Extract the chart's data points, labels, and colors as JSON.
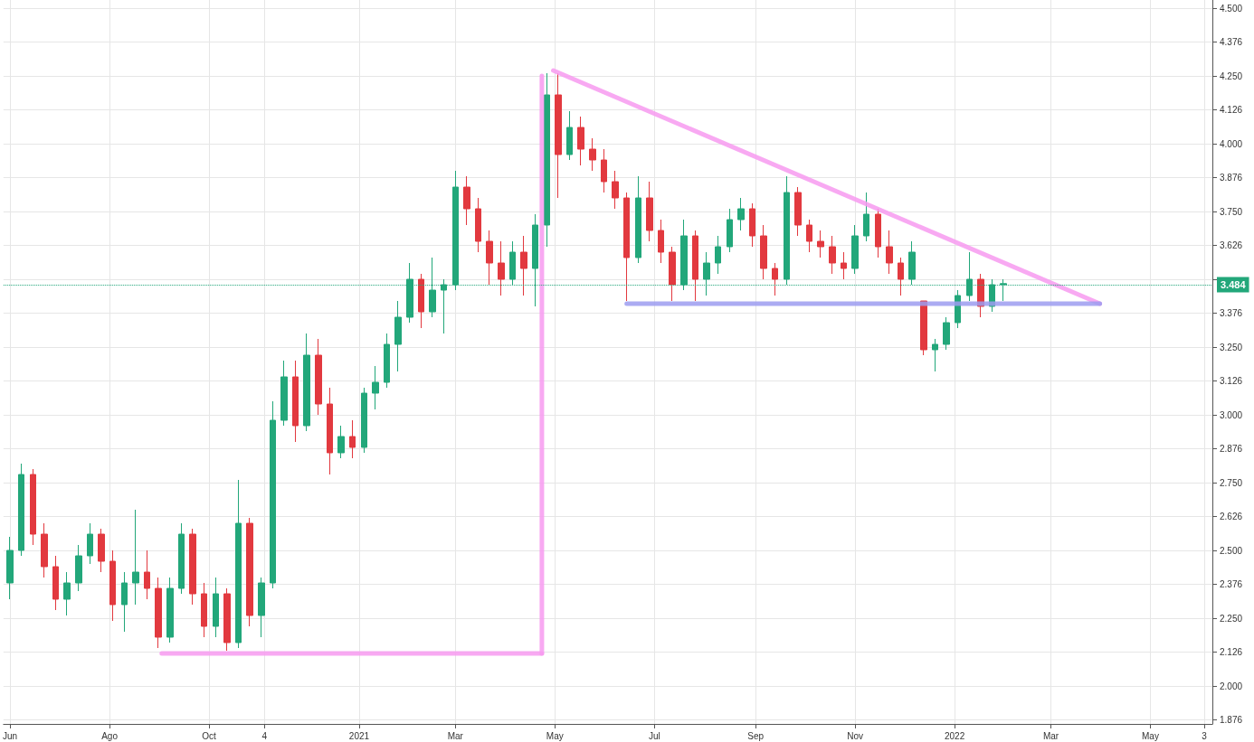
{
  "chart_data": {
    "type": "candlestick",
    "x": [
      "2020-06-01",
      "2020-06-08",
      "2020-06-15",
      "2020-06-22",
      "2020-06-29",
      "2020-07-06",
      "2020-07-13",
      "2020-07-20",
      "2020-07-27",
      "2020-08-03",
      "2020-08-10",
      "2020-08-17",
      "2020-08-24",
      "2020-08-31",
      "2020-09-07",
      "2020-09-14",
      "2020-09-21",
      "2020-09-28",
      "2020-10-05",
      "2020-10-12",
      "2020-10-19",
      "2020-10-26",
      "2020-11-02",
      "2020-11-09",
      "2020-11-16",
      "2020-11-23",
      "2020-11-30",
      "2020-12-07",
      "2020-12-14",
      "2020-12-21",
      "2020-12-28",
      "2021-01-04",
      "2021-01-11",
      "2021-01-18",
      "2021-01-25",
      "2021-02-01",
      "2021-02-08",
      "2021-02-15",
      "2021-02-22",
      "2021-03-01",
      "2021-03-08",
      "2021-03-15",
      "2021-03-22",
      "2021-03-29",
      "2021-04-05",
      "2021-04-12",
      "2021-04-19",
      "2021-04-26",
      "2021-05-03",
      "2021-05-10",
      "2021-05-17",
      "2021-05-24",
      "2021-05-31",
      "2021-06-07",
      "2021-06-14",
      "2021-06-21",
      "2021-06-28",
      "2021-07-05",
      "2021-07-12",
      "2021-07-19",
      "2021-07-26",
      "2021-08-02",
      "2021-08-09",
      "2021-08-16",
      "2021-08-23",
      "2021-08-30",
      "2021-09-06",
      "2021-09-13",
      "2021-09-20",
      "2021-09-27",
      "2021-10-04",
      "2021-10-11",
      "2021-10-18",
      "2021-10-25",
      "2021-11-01",
      "2021-11-08",
      "2021-11-15",
      "2021-11-22",
      "2021-11-29",
      "2021-12-06",
      "2021-12-13",
      "2021-12-20",
      "2021-12-27",
      "2022-01-03",
      "2022-01-10",
      "2022-01-17",
      "2022-01-24",
      "2022-01-31"
    ],
    "ohlc": [
      [
        2.38,
        2.55,
        2.32,
        2.5
      ],
      [
        2.5,
        2.82,
        2.48,
        2.78
      ],
      [
        2.78,
        2.8,
        2.52,
        2.56
      ],
      [
        2.56,
        2.6,
        2.4,
        2.44
      ],
      [
        2.44,
        2.48,
        2.28,
        2.32
      ],
      [
        2.32,
        2.42,
        2.26,
        2.38
      ],
      [
        2.38,
        2.52,
        2.35,
        2.48
      ],
      [
        2.48,
        2.6,
        2.45,
        2.56
      ],
      [
        2.56,
        2.58,
        2.42,
        2.46
      ],
      [
        2.46,
        2.5,
        2.24,
        2.3
      ],
      [
        2.3,
        2.42,
        2.2,
        2.38
      ],
      [
        2.38,
        2.65,
        2.3,
        2.42
      ],
      [
        2.42,
        2.5,
        2.32,
        2.36
      ],
      [
        2.36,
        2.4,
        2.14,
        2.18
      ],
      [
        2.18,
        2.4,
        2.16,
        2.36
      ],
      [
        2.36,
        2.6,
        2.34,
        2.56
      ],
      [
        2.56,
        2.58,
        2.3,
        2.34
      ],
      [
        2.34,
        2.38,
        2.18,
        2.22
      ],
      [
        2.22,
        2.4,
        2.18,
        2.34
      ],
      [
        2.34,
        2.36,
        2.13,
        2.16
      ],
      [
        2.16,
        2.76,
        2.14,
        2.6
      ],
      [
        2.6,
        2.62,
        2.22,
        2.26
      ],
      [
        2.26,
        2.4,
        2.18,
        2.38
      ],
      [
        2.38,
        3.05,
        2.36,
        2.98
      ],
      [
        2.98,
        3.2,
        2.96,
        3.14
      ],
      [
        3.14,
        3.2,
        2.9,
        2.96
      ],
      [
        2.96,
        3.3,
        2.94,
        3.22
      ],
      [
        3.22,
        3.28,
        3.0,
        3.04
      ],
      [
        3.04,
        3.1,
        2.78,
        2.86
      ],
      [
        2.86,
        2.96,
        2.84,
        2.92
      ],
      [
        2.92,
        2.98,
        2.84,
        2.88
      ],
      [
        2.88,
        3.1,
        2.86,
        3.08
      ],
      [
        3.08,
        3.18,
        3.02,
        3.12
      ],
      [
        3.12,
        3.3,
        3.1,
        3.26
      ],
      [
        3.26,
        3.42,
        3.16,
        3.36
      ],
      [
        3.36,
        3.56,
        3.34,
        3.5
      ],
      [
        3.5,
        3.52,
        3.32,
        3.38
      ],
      [
        3.38,
        3.58,
        3.36,
        3.46
      ],
      [
        3.46,
        3.5,
        3.3,
        3.48
      ],
      [
        3.48,
        3.9,
        3.46,
        3.84
      ],
      [
        3.84,
        3.88,
        3.7,
        3.76
      ],
      [
        3.76,
        3.8,
        3.6,
        3.64
      ],
      [
        3.64,
        3.68,
        3.48,
        3.56
      ],
      [
        3.56,
        3.64,
        3.44,
        3.5
      ],
      [
        3.5,
        3.64,
        3.48,
        3.6
      ],
      [
        3.6,
        3.66,
        3.44,
        3.54
      ],
      [
        3.54,
        3.74,
        3.4,
        3.7
      ],
      [
        3.7,
        4.26,
        3.62,
        4.18
      ],
      [
        4.18,
        4.26,
        3.8,
        3.96
      ],
      [
        3.96,
        4.12,
        3.94,
        4.06
      ],
      [
        4.06,
        4.1,
        3.92,
        3.98
      ],
      [
        3.98,
        4.02,
        3.9,
        3.94
      ],
      [
        3.94,
        3.98,
        3.82,
        3.86
      ],
      [
        3.86,
        3.9,
        3.76,
        3.8
      ],
      [
        3.8,
        3.82,
        3.42,
        3.58
      ],
      [
        3.58,
        3.88,
        3.56,
        3.8
      ],
      [
        3.8,
        3.86,
        3.64,
        3.68
      ],
      [
        3.68,
        3.72,
        3.56,
        3.6
      ],
      [
        3.6,
        3.62,
        3.42,
        3.48
      ],
      [
        3.48,
        3.72,
        3.46,
        3.66
      ],
      [
        3.66,
        3.68,
        3.42,
        3.5
      ],
      [
        3.5,
        3.6,
        3.44,
        3.56
      ],
      [
        3.56,
        3.66,
        3.52,
        3.62
      ],
      [
        3.62,
        3.76,
        3.6,
        3.72
      ],
      [
        3.72,
        3.8,
        3.68,
        3.76
      ],
      [
        3.76,
        3.78,
        3.62,
        3.66
      ],
      [
        3.66,
        3.7,
        3.5,
        3.54
      ],
      [
        3.54,
        3.56,
        3.44,
        3.5
      ],
      [
        3.5,
        3.88,
        3.48,
        3.82
      ],
      [
        3.82,
        3.84,
        3.66,
        3.7
      ],
      [
        3.7,
        3.72,
        3.6,
        3.64
      ],
      [
        3.64,
        3.68,
        3.58,
        3.62
      ],
      [
        3.62,
        3.66,
        3.52,
        3.56
      ],
      [
        3.56,
        3.6,
        3.5,
        3.54
      ],
      [
        3.54,
        3.7,
        3.52,
        3.66
      ],
      [
        3.66,
        3.82,
        3.64,
        3.74
      ],
      [
        3.74,
        3.76,
        3.58,
        3.62
      ],
      [
        3.62,
        3.68,
        3.52,
        3.56
      ],
      [
        3.56,
        3.58,
        3.44,
        3.5
      ],
      [
        3.5,
        3.64,
        3.48,
        3.6
      ],
      [
        3.42,
        3.42,
        3.22,
        3.24
      ],
      [
        3.24,
        3.28,
        3.16,
        3.26
      ],
      [
        3.26,
        3.36,
        3.24,
        3.34
      ],
      [
        3.34,
        3.46,
        3.32,
        3.44
      ],
      [
        3.44,
        3.6,
        3.42,
        3.5
      ],
      [
        3.5,
        3.52,
        3.36,
        3.4
      ],
      [
        3.4,
        3.5,
        3.38,
        3.48
      ],
      [
        3.48,
        3.5,
        3.42,
        3.484
      ]
    ],
    "colors": [
      "#22a77a",
      "#22a77a",
      "#e2393f",
      "#e2393f",
      "#e2393f",
      "#22a77a",
      "#22a77a",
      "#22a77a",
      "#e2393f",
      "#e2393f",
      "#22a77a",
      "#22a77a",
      "#e2393f",
      "#e2393f",
      "#22a77a",
      "#22a77a",
      "#e2393f",
      "#e2393f",
      "#22a77a",
      "#e2393f",
      "#22a77a",
      "#e2393f",
      "#22a77a",
      "#22a77a",
      "#22a77a",
      "#e2393f",
      "#22a77a",
      "#e2393f",
      "#e2393f",
      "#22a77a",
      "#e2393f",
      "#22a77a",
      "#22a77a",
      "#22a77a",
      "#22a77a",
      "#22a77a",
      "#e2393f",
      "#22a77a",
      "#22a77a",
      "#22a77a",
      "#e2393f",
      "#e2393f",
      "#e2393f",
      "#e2393f",
      "#22a77a",
      "#e2393f",
      "#22a77a",
      "#22a77a",
      "#e2393f",
      "#22a77a",
      "#e2393f",
      "#e2393f",
      "#e2393f",
      "#e2393f",
      "#e2393f",
      "#22a77a",
      "#e2393f",
      "#e2393f",
      "#e2393f",
      "#22a77a",
      "#e2393f",
      "#22a77a",
      "#22a77a",
      "#22a77a",
      "#22a77a",
      "#e2393f",
      "#e2393f",
      "#e2393f",
      "#22a77a",
      "#e2393f",
      "#e2393f",
      "#e2393f",
      "#e2393f",
      "#e2393f",
      "#22a77a",
      "#22a77a",
      "#e2393f",
      "#e2393f",
      "#e2393f",
      "#22a77a",
      "#e2393f",
      "#22a77a",
      "#22a77a",
      "#22a77a",
      "#22a77a",
      "#e2393f",
      "#22a77a",
      "#22a77a"
    ],
    "series": [
      {
        "type": "line",
        "color": "#f79af0",
        "x": [
          "2021-04-30",
          "2022-03-31"
        ],
        "values": [
          4.27,
          3.41
        ]
      },
      {
        "type": "line",
        "color": "#9c9cf0",
        "x": [
          "2021-06-14",
          "2022-03-31"
        ],
        "values": [
          3.41,
          3.41
        ]
      },
      {
        "type": "line",
        "color": "#f79af0",
        "x": [
          "2020-09-02",
          "2021-04-23"
        ],
        "values": [
          2.12,
          2.12
        ]
      },
      {
        "type": "line",
        "color": "#f79af0",
        "x": [
          "2021-04-23",
          "2021-04-23"
        ],
        "values": [
          2.12,
          4.25
        ]
      }
    ],
    "ref_lines": [
      {
        "axis": "y",
        "value": 3.484,
        "label": "3.484",
        "color": "#22a77a",
        "line_style": "dotted"
      }
    ],
    "xlim": [
      "2020-05-28",
      "2022-06-08"
    ],
    "xticks": [
      {
        "value": "2020-06-01",
        "label": "Jun"
      },
      {
        "value": "2020-08-01",
        "label": "Ago"
      },
      {
        "value": "2020-10-01",
        "label": "Oct"
      },
      {
        "value": "2020-11-04",
        "label": "4"
      },
      {
        "value": "2021-01-01",
        "label": "2021"
      },
      {
        "value": "2021-03-01",
        "label": "Mar"
      },
      {
        "value": "2021-05-01",
        "label": "May"
      },
      {
        "value": "2021-07-01",
        "label": "Jul"
      },
      {
        "value": "2021-09-01",
        "label": "Sep"
      },
      {
        "value": "2021-11-01",
        "label": "Nov"
      },
      {
        "value": "2022-01-01",
        "label": "2022"
      },
      {
        "value": "2022-03-01",
        "label": "Mar"
      },
      {
        "value": "2022-05-01",
        "label": "May"
      },
      {
        "value": "2022-06-03",
        "label": "3"
      }
    ],
    "ylim": [
      1.86,
      4.53
    ],
    "yticks": [
      1.876,
      {
        "value": 2,
        "label": "2.000"
      },
      2.126,
      {
        "value": 2.25,
        "label": "2.250"
      },
      2.376,
      {
        "value": 2.5,
        "label": "2.500"
      },
      2.626,
      {
        "value": 2.75,
        "label": "2.750"
      },
      2.876,
      {
        "value": 3,
        "label": "3.000"
      },
      3.126,
      {
        "value": 3.25,
        "label": "3.250"
      },
      3.376,
      {
        "value": 3.5,
        "label": null
      },
      3.626,
      {
        "value": 3.75,
        "label": "3.750"
      },
      3.876,
      {
        "value": 4,
        "label": "4.000"
      },
      4.126,
      {
        "value": 4.25,
        "label": "4.250"
      },
      4.376,
      {
        "value": 4.5,
        "label": "4.500"
      }
    ],
    "grid": true
  }
}
